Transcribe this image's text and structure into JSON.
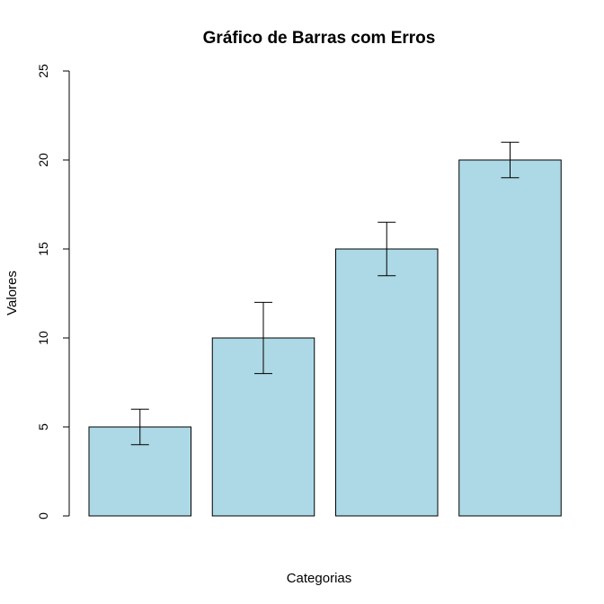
{
  "chart_data": {
    "type": "bar",
    "title": "Gráfico de Barras com Erros",
    "xlabel": "Categorias",
    "ylabel": "Valores",
    "categories": [
      "",
      "",
      "",
      ""
    ],
    "values": [
      5,
      10,
      15,
      20
    ],
    "errors": [
      1,
      2,
      1.5,
      1
    ],
    "ylim": [
      0,
      25
    ],
    "yticks": [
      0,
      5,
      10,
      15,
      20,
      25
    ],
    "yticklabels": [
      "0",
      "5",
      "10",
      "15",
      "20",
      "25"
    ],
    "grid": false,
    "colors": {
      "bar_fill": "#add8e6",
      "bar_stroke": "#000000",
      "error_bar": "#000000"
    }
  }
}
